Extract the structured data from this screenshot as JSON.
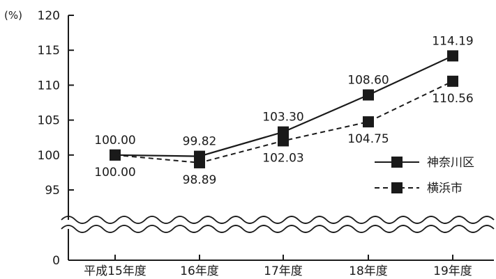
{
  "chart_data": {
    "type": "line",
    "unit": "(%)",
    "title": "",
    "xlabel": "",
    "ylabel": "",
    "categories": [
      "平成15年度",
      "16年度",
      "17年度",
      "18年度",
      "19年度"
    ],
    "y_ticks": [
      "0",
      "95",
      "100",
      "105",
      "110",
      "115",
      "120"
    ],
    "ylim": [
      95,
      120
    ],
    "axis_break": true,
    "grid": false,
    "legend_position": "right",
    "series": [
      {
        "name": "神奈川区",
        "line_style": "solid",
        "color": "#1a1a1a",
        "values": [
          100.0,
          99.82,
          103.3,
          108.6,
          114.19
        ],
        "labels": [
          "100.00",
          "99.82",
          "103.30",
          "108.60",
          "114.19"
        ]
      },
      {
        "name": "横浜市",
        "line_style": "dashed",
        "color": "#1a1a1a",
        "values": [
          100.0,
          98.89,
          102.03,
          104.75,
          110.56
        ],
        "labels": [
          "100.00",
          "98.89",
          "102.03",
          "104.75",
          "110.56"
        ]
      }
    ]
  }
}
